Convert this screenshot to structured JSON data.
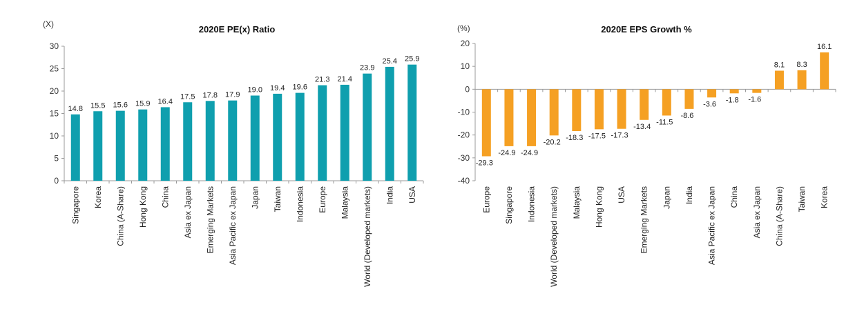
{
  "chart_data": [
    {
      "type": "bar",
      "title": "2020E PE(x) Ratio",
      "unit": "(X)",
      "xlabel": "",
      "ylabel": "",
      "ylim": [
        0,
        30
      ],
      "yticks": [
        0,
        5,
        10,
        15,
        20,
        25,
        30
      ],
      "grid": false,
      "color": "#0f9fae",
      "categories": [
        "Singapore",
        "Korea",
        "China (A-Share)",
        "Hong Kong",
        "China",
        "Asia ex Japan",
        "Emerging Markets",
        "Asia Pacific ex Japan",
        "Japan",
        "Taiwan",
        "Indonesia",
        "Europe",
        "Malaysia",
        "World (Developed markets)",
        "India",
        "USA"
      ],
      "values": [
        14.8,
        15.5,
        15.6,
        15.9,
        16.4,
        17.5,
        17.8,
        17.9,
        19.0,
        19.4,
        19.6,
        21.3,
        21.4,
        23.9,
        25.4,
        25.9
      ]
    },
    {
      "type": "bar",
      "title": "2020E EPS Growth %",
      "unit": "(%)",
      "xlabel": "",
      "ylabel": "",
      "ylim": [
        -40,
        20
      ],
      "yticks": [
        -40,
        -30,
        -20,
        -10,
        0,
        10,
        20
      ],
      "grid": false,
      "color": "#f5a023",
      "categories": [
        "Europe",
        "Singapore",
        "Indonesia",
        "World (Developed markets)",
        "Malaysia",
        "Hong Kong",
        "USA",
        "Emerging Markets",
        "Japan",
        "India",
        "Asia Pacific ex Japan",
        "China",
        "Asia ex Japan",
        "China (A-Share)",
        "Taiwan",
        "Korea"
      ],
      "values": [
        -29.3,
        -24.9,
        -24.9,
        -20.2,
        -18.3,
        -17.5,
        -17.3,
        -13.4,
        -11.5,
        -8.6,
        -3.6,
        -1.8,
        -1.6,
        8.1,
        8.3,
        16.1
      ]
    }
  ]
}
